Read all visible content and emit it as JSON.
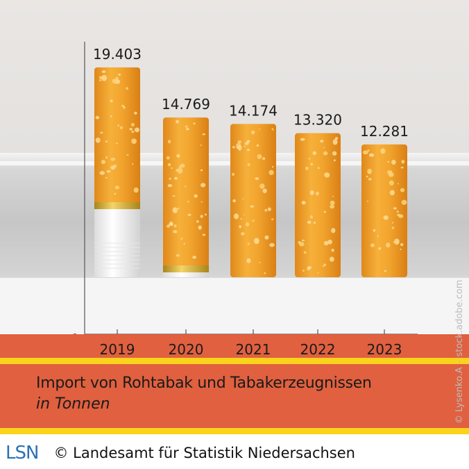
{
  "chart_data": {
    "type": "bar",
    "title": "Import von Rohtabak und Tabakerzeugnissen",
    "subtitle": "in Tonnen",
    "categories": [
      "2019",
      "2020",
      "2021",
      "2022",
      "2023"
    ],
    "values": [
      19403,
      14769,
      14174,
      13320,
      12281
    ],
    "value_labels": [
      "19.403",
      "14.769",
      "14.174",
      "13.320",
      "12.281"
    ],
    "y_tick_labels": [
      "0"
    ],
    "ylim": [
      0,
      19403
    ],
    "grid": false,
    "legend": "none",
    "bar_style": "cigarette"
  },
  "footer": {
    "logo_text": "LSN",
    "copyright": "© Landesamt für Statistik Niedersachsen"
  },
  "photo_credit": "© Lysenko.A – stock.adobe.com",
  "colors": {
    "background": "#e4e1df",
    "band_red": "#e0603f",
    "band_yellow": "#fbd31c",
    "tobacco": "#f0a12a",
    "tobacco_light": "#fbcb66",
    "filter_gold": "#c9a227",
    "logo_blue": "#2a72b5"
  }
}
